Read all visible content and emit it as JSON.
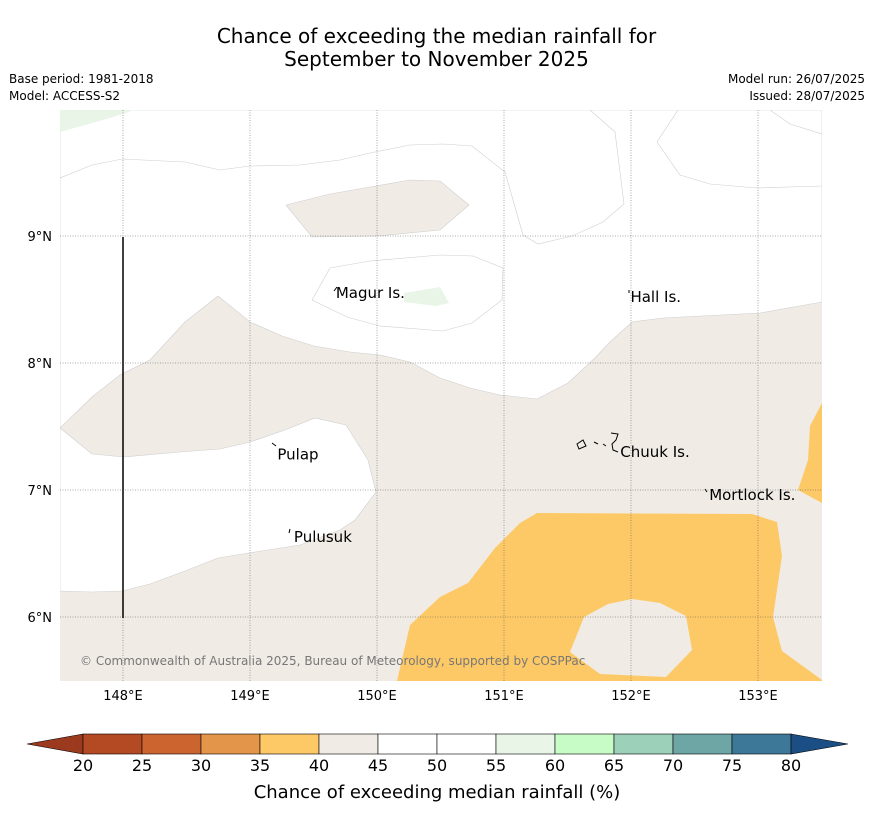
{
  "title_line1": "Chance of exceeding the median rainfall for",
  "title_line2": "September to November 2025",
  "meta_left": {
    "base_period": "Base period: 1981-2018",
    "model": "Model: ACCESS-S2"
  },
  "meta_right": {
    "model_run": "Model run: 26/07/2025",
    "issued": "Issued: 28/07/2025"
  },
  "copyright": "© Commonwealth of Australia 2025, Bureau of Meteorology, supported by COSPPac",
  "map": {
    "lon_range": [
      147.5,
      153.5
    ],
    "lat_range": [
      5.5,
      10.0
    ],
    "lon_ticks": [
      {
        "value": 148,
        "label": "148°E"
      },
      {
        "value": 149,
        "label": "149°E"
      },
      {
        "value": 150,
        "label": "150°E"
      },
      {
        "value": 151,
        "label": "151°E"
      },
      {
        "value": 152,
        "label": "152°E"
      },
      {
        "value": 153,
        "label": "153°E"
      }
    ],
    "lat_ticks": [
      {
        "value": 9,
        "label": "9°N"
      },
      {
        "value": 8,
        "label": "8°N"
      },
      {
        "value": 7,
        "label": "7°N"
      },
      {
        "value": 6,
        "label": "6°N"
      }
    ],
    "places": [
      {
        "name": "Magur Is.",
        "lon": 149.66,
        "lat": 8.55
      },
      {
        "name": "Hall Is.",
        "lon": 151.98,
        "lat": 8.52
      },
      {
        "name": "Pulap",
        "lon": 149.2,
        "lat": 7.28
      },
      {
        "name": "Chuuk Is.",
        "lon": 151.9,
        "lat": 7.3
      },
      {
        "name": "Mortlock Is.",
        "lon": 152.6,
        "lat": 6.96
      },
      {
        "name": "Pulusuk",
        "lon": 149.33,
        "lat": 6.63
      }
    ],
    "category_colors": {
      "35-40": "#fdc966",
      "40-45": "#f0ebe5",
      "45-55": "#ffffff",
      "55-60": "#e8f5e7"
    }
  },
  "colorbar": {
    "title": "Chance of exceeding median rainfall (%)",
    "labels": [
      "20",
      "25",
      "30",
      "35",
      "40",
      "45",
      "50",
      "55",
      "60",
      "65",
      "70",
      "75",
      "80"
    ],
    "colors": [
      "#b34a24",
      "#cc6430",
      "#e3954a",
      "#fdc966",
      "#f0ebe5",
      "#ffffff",
      "#ffffff",
      "#e8f5e7",
      "#c7fcc7",
      "#9dd0b8",
      "#6da6a4",
      "#3e7898"
    ],
    "low_extend_color": "#9c3a1f",
    "high_extend_color": "#1a4e84"
  }
}
